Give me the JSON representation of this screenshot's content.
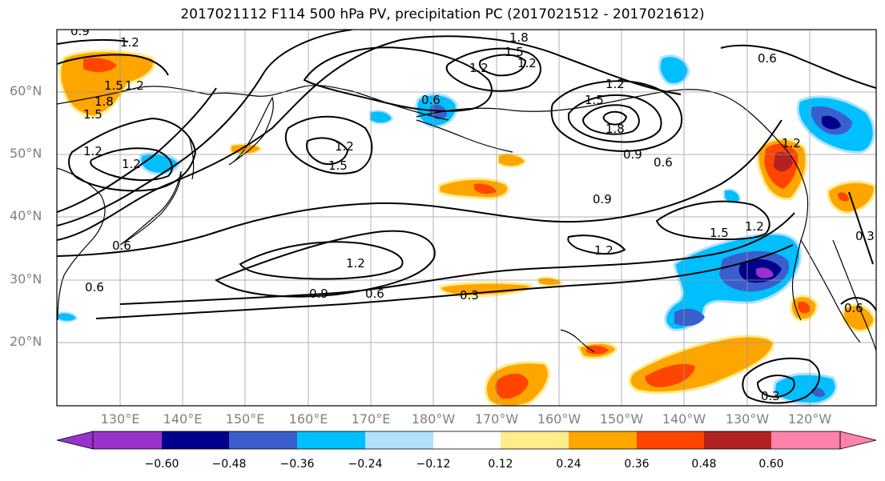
{
  "title": "2017021112 F114 500 hPa PV, precipitation PC (2017021512 - 2017021612)",
  "lat_labels": [
    "60°N",
    "50°N",
    "40°N",
    "30°N",
    "20°N"
  ],
  "lon_labels": [
    "130°E",
    "140°E",
    "150°E",
    "160°E",
    "170°E",
    "180°W",
    "170°W",
    "160°W",
    "150°W",
    "140°W",
    "130°W",
    "120°W"
  ],
  "contour_labels": [
    "0.9",
    "1.2",
    "1.8",
    "1.5",
    "1.2",
    "1.8",
    "1.5",
    "1.2",
    "1.2",
    "1.5",
    "1.2",
    "1.5",
    "0.6",
    "1.2",
    "1.5",
    "1.8",
    "1.2",
    "0.9",
    "0.6",
    "0.6",
    "0.9",
    "1.2",
    "1.5",
    "1.2",
    "1.2",
    "0.9",
    "0.6",
    "0.3",
    "0.6",
    "0.6",
    "0.3",
    "0.3",
    "0.6",
    "1.2",
    "1.2"
  ],
  "colorbar": {
    "ticks": [
      "−0.60",
      "−0.48",
      "−0.36",
      "−0.24",
      "−0.12",
      "0.12",
      "0.24",
      "0.36",
      "0.48",
      "0.60"
    ],
    "colors": [
      "#9932cc",
      "#00008b",
      "#3a5fcd",
      "#00bfff",
      "#b0e2ff",
      "#ffffff",
      "#ffec8b",
      "#ffa500",
      "#ff4500",
      "#b22222",
      "#ff82ab"
    ]
  },
  "colors": {
    "neg_light": "#b0e2ff",
    "neg_mid": "#00bfff",
    "neg_strong": "#3a5fcd",
    "neg_max": "#00008b",
    "neg_extreme": "#9932cc",
    "pos_light": "#ffec8b",
    "pos_mid": "#ffa500",
    "pos_strong": "#ff4500",
    "pos_max": "#b22222"
  }
}
